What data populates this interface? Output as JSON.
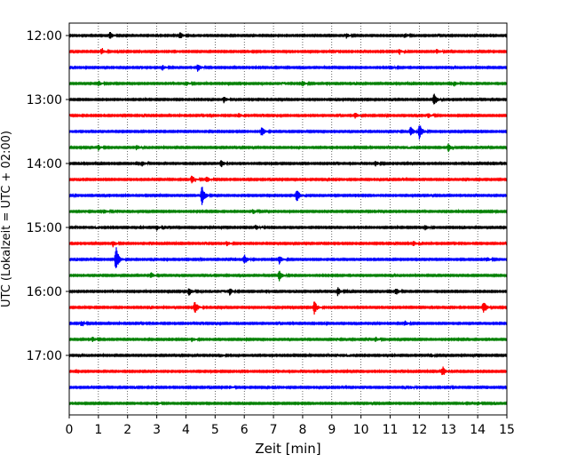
{
  "chart_data": {
    "type": "line",
    "title": "",
    "xlabel": "Zeit  [min]",
    "ylabel": "UTC (Lokalzeit = UTC + 02:00)",
    "xlim": [
      0,
      15
    ],
    "x_ticks": [
      0,
      1,
      2,
      3,
      4,
      5,
      6,
      7,
      8,
      9,
      10,
      11,
      12,
      13,
      14,
      15
    ],
    "x_grid": true,
    "y_ticks": [
      "12:00",
      "13:00",
      "14:00",
      "15:00",
      "16:00",
      "17:00"
    ],
    "trace_minutes_per_row": 15,
    "traces": [
      {
        "start": "12:00",
        "color": "#000000",
        "events": [
          {
            "t": 1.4,
            "a": 4
          },
          {
            "t": 3.8,
            "a": 4
          },
          {
            "t": 9.5,
            "a": 3
          },
          {
            "t": 11.5,
            "a": 3
          }
        ]
      },
      {
        "start": "12:15",
        "color": "#ff0000",
        "events": [
          {
            "t": 1.1,
            "a": 3
          },
          {
            "t": 11.3,
            "a": 3
          },
          {
            "t": 12.6,
            "a": 3
          }
        ]
      },
      {
        "start": "12:30",
        "color": "#0000ff",
        "events": [
          {
            "t": 4.4,
            "a": 5
          },
          {
            "t": 3.2,
            "a": 3
          },
          {
            "t": 11.0,
            "a": 3
          }
        ]
      },
      {
        "start": "12:45",
        "color": "#008000",
        "events": [
          {
            "t": 1.0,
            "a": 3
          },
          {
            "t": 4.0,
            "a": 3
          },
          {
            "t": 8.0,
            "a": 3
          },
          {
            "t": 13.2,
            "a": 3
          }
        ]
      },
      {
        "start": "13:00",
        "color": "#000000",
        "events": [
          {
            "t": 5.3,
            "a": 4
          },
          {
            "t": 12.5,
            "a": 8
          }
        ]
      },
      {
        "start": "13:15",
        "color": "#ff0000",
        "events": [
          {
            "t": 5.8,
            "a": 3
          },
          {
            "t": 9.8,
            "a": 4
          },
          {
            "t": 12.3,
            "a": 3
          }
        ]
      },
      {
        "start": "13:30",
        "color": "#0000ff",
        "events": [
          {
            "t": 6.6,
            "a": 6
          },
          {
            "t": 12.0,
            "a": 10
          },
          {
            "t": 11.7,
            "a": 6
          }
        ]
      },
      {
        "start": "13:45",
        "color": "#008000",
        "events": [
          {
            "t": 1.0,
            "a": 3
          },
          {
            "t": 2.3,
            "a": 3
          },
          {
            "t": 13.0,
            "a": 5
          }
        ]
      },
      {
        "start": "14:00",
        "color": "#000000",
        "events": [
          {
            "t": 2.5,
            "a": 3
          },
          {
            "t": 5.2,
            "a": 5
          },
          {
            "t": 10.5,
            "a": 3
          }
        ]
      },
      {
        "start": "14:15",
        "color": "#ff0000",
        "events": [
          {
            "t": 4.2,
            "a": 5
          },
          {
            "t": 4.7,
            "a": 4
          }
        ]
      },
      {
        "start": "14:30",
        "color": "#0000ff",
        "events": [
          {
            "t": 4.55,
            "a": 13
          },
          {
            "t": 7.8,
            "a": 8
          }
        ]
      },
      {
        "start": "14:45",
        "color": "#008000",
        "events": [
          {
            "t": 1.2,
            "a": 3
          },
          {
            "t": 6.3,
            "a": 3
          }
        ]
      },
      {
        "start": "15:00",
        "color": "#000000",
        "events": [
          {
            "t": 3.0,
            "a": 3
          },
          {
            "t": 6.4,
            "a": 3
          },
          {
            "t": 12.2,
            "a": 3
          }
        ]
      },
      {
        "start": "15:15",
        "color": "#ff0000",
        "events": [
          {
            "t": 1.5,
            "a": 4
          },
          {
            "t": 5.4,
            "a": 3
          },
          {
            "t": 11.8,
            "a": 3
          }
        ]
      },
      {
        "start": "15:30",
        "color": "#0000ff",
        "events": [
          {
            "t": 1.6,
            "a": 16
          },
          {
            "t": 6.0,
            "a": 6
          },
          {
            "t": 7.2,
            "a": 5
          },
          {
            "t": 14.3,
            "a": 3
          }
        ]
      },
      {
        "start": "15:45",
        "color": "#008000",
        "events": [
          {
            "t": 2.8,
            "a": 4
          },
          {
            "t": 7.2,
            "a": 6
          }
        ]
      },
      {
        "start": "16:00",
        "color": "#000000",
        "events": [
          {
            "t": 4.1,
            "a": 5
          },
          {
            "t": 5.5,
            "a": 4
          },
          {
            "t": 9.2,
            "a": 5
          },
          {
            "t": 11.2,
            "a": 4
          }
        ]
      },
      {
        "start": "16:15",
        "color": "#ff0000",
        "events": [
          {
            "t": 4.3,
            "a": 8
          },
          {
            "t": 8.4,
            "a": 8
          },
          {
            "t": 14.2,
            "a": 8
          }
        ]
      },
      {
        "start": "16:30",
        "color": "#0000ff",
        "events": [
          {
            "t": 0.4,
            "a": 3
          },
          {
            "t": 11.5,
            "a": 3
          }
        ]
      },
      {
        "start": "16:45",
        "color": "#008000",
        "events": [
          {
            "t": 0.8,
            "a": 3
          },
          {
            "t": 4.2,
            "a": 3
          },
          {
            "t": 10.5,
            "a": 3
          }
        ]
      },
      {
        "start": "17:00",
        "color": "#000000",
        "events": [
          {
            "t": 5.2,
            "a": 2
          },
          {
            "t": 12.4,
            "a": 2
          }
        ]
      },
      {
        "start": "17:15",
        "color": "#ff0000",
        "events": [
          {
            "t": 12.8,
            "a": 6
          }
        ]
      },
      {
        "start": "17:30",
        "color": "#0000ff",
        "events": [
          {
            "t": 5.5,
            "a": 2
          },
          {
            "t": 11.7,
            "a": 2
          }
        ]
      },
      {
        "start": "17:45",
        "color": "#008000",
        "events": [
          {
            "t": 3.0,
            "a": 2
          },
          {
            "t": 14.0,
            "a": 2
          }
        ]
      }
    ]
  }
}
